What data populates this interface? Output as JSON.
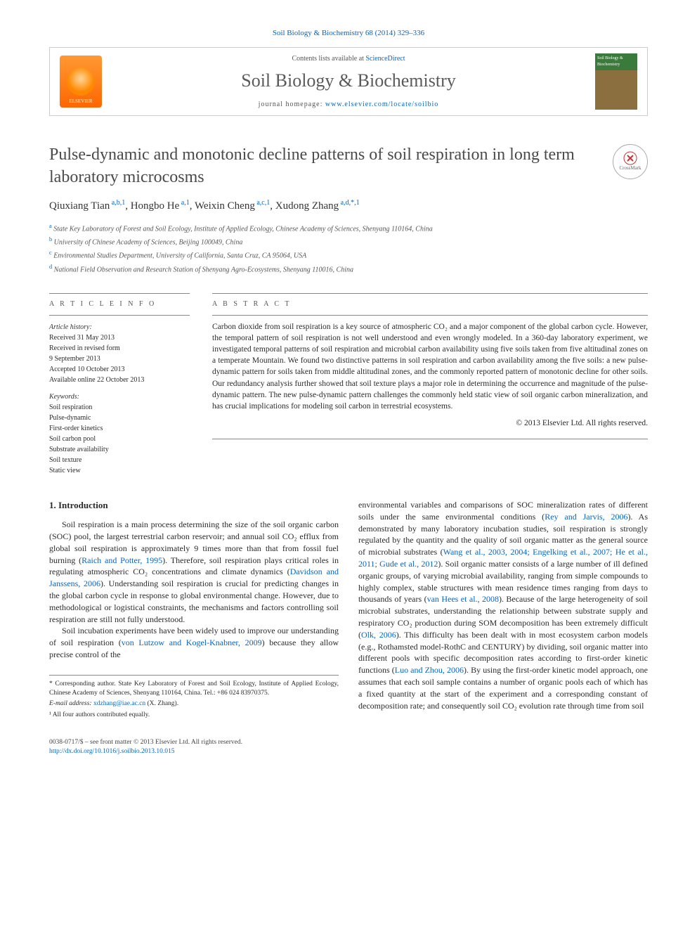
{
  "citation": "Soil Biology & Biochemistry 68 (2014) 329–336",
  "header": {
    "contents_prefix": "Contents lists available at ",
    "contents_link": "ScienceDirect",
    "journal": "Soil Biology & Biochemistry",
    "homepage_label": "journal homepage: ",
    "homepage_url": "www.elsevier.com/locate/soilbio",
    "publisher": "ELSEVIER",
    "cover_text": "Soil Biology & Biochemistry"
  },
  "title": "Pulse-dynamic and monotonic decline patterns of soil respiration in long term laboratory microcosms",
  "crossmark": "CrossMark",
  "authors_html": "Qiuxiang Tian<sup> a,b,1</sup>, Hongbo He<sup> a,1</sup>, Weixin Cheng<sup> a,c,1</sup>, Xudong Zhang<sup> a,d,*,1</sup>",
  "affiliations": [
    {
      "sup": "a",
      "text": "State Key Laboratory of Forest and Soil Ecology, Institute of Applied Ecology, Chinese Academy of Sciences, Shenyang 110164, China"
    },
    {
      "sup": "b",
      "text": "University of Chinese Academy of Sciences, Beijing 100049, China"
    },
    {
      "sup": "c",
      "text": "Environmental Studies Department, University of California, Santa Cruz, CA 95064, USA"
    },
    {
      "sup": "d",
      "text": "National Field Observation and Research Station of Shenyang Agro-Ecosystems, Shenyang 110016, China"
    }
  ],
  "info": {
    "heading": "A R T I C L E   I N F O",
    "history_label": "Article history:",
    "history": [
      "Received 31 May 2013",
      "Received in revised form",
      "9 September 2013",
      "Accepted 10 October 2013",
      "Available online 22 October 2013"
    ],
    "keywords_label": "Keywords:",
    "keywords": [
      "Soil respiration",
      "Pulse-dynamic",
      "First-order kinetics",
      "Soil carbon pool",
      "Substrate availability",
      "Soil texture",
      "Static view"
    ]
  },
  "abstract": {
    "heading": "A B S T R A C T",
    "text": "Carbon dioxide from soil respiration is a key source of atmospheric CO₂ and a major component of the global carbon cycle. However, the temporal pattern of soil respiration is not well understood and even wrongly modeled. In a 360-day laboratory experiment, we investigated temporal patterns of soil respiration and microbial carbon availability using five soils taken from five altitudinal zones on a temperate Mountain. We found two distinctive patterns in soil respiration and carbon availability among the five soils: a new pulse-dynamic pattern for soils taken from middle altitudinal zones, and the commonly reported pattern of monotonic decline for other soils. Our redundancy analysis further showed that soil texture plays a major role in determining the occurrence and magnitude of the pulse-dynamic pattern. The new pulse-dynamic pattern challenges the commonly held static view of soil organic carbon mineralization, and has crucial implications for modeling soil carbon in terrestrial ecosystems.",
    "copyright": "© 2013 Elsevier Ltd. All rights reserved."
  },
  "body": {
    "section_number": "1.",
    "section_title": "Introduction",
    "col1_p1_a": "Soil respiration is a main process determining the size of the soil organic carbon (SOC) pool, the largest terrestrial carbon reservoir; and annual soil CO₂ efflux from global soil respiration is approximately 9 times more than that from fossil fuel burning (",
    "col1_p1_ref1": "Raich and Potter, 1995",
    "col1_p1_b": "). Therefore, soil respiration plays critical roles in regulating atmospheric CO₂ concentrations and climate dynamics (",
    "col1_p1_ref2": "Davidson and Janssens, 2006",
    "col1_p1_c": "). Understanding soil respiration is crucial for predicting changes in the global carbon cycle in response to global environmental change. However, due to methodological or logistical constraints, the mechanisms and factors controlling soil respiration are still not fully understood.",
    "col1_p2_a": "Soil incubation experiments have been widely used to improve our understanding of soil respiration (",
    "col1_p2_ref1": "von Lutzow and Kogel-Knabner, 2009",
    "col1_p2_b": ") because they allow precise control of the",
    "col2_p1_a": "environmental variables and comparisons of SOC mineralization rates of different soils under the same environmental conditions (",
    "col2_p1_ref1": "Rey and Jarvis, 2006",
    "col2_p1_b": "). As demonstrated by many laboratory incubation studies, soil respiration is strongly regulated by the quantity and the quality of soil organic matter as the general source of microbial substrates (",
    "col2_p1_ref2": "Wang et al., 2003, 2004; Engelking et al., 2007; He et al., 2011; Gude et al., 2012",
    "col2_p1_c": "). Soil organic matter consists of a large number of ill defined organic groups, of varying microbial availability, ranging from simple compounds to highly complex, stable structures with mean residence times ranging from days to thousands of years (",
    "col2_p1_ref3": "van Hees et al., 2008",
    "col2_p1_d": "). Because of the large heterogeneity of soil microbial substrates, understanding the relationship between substrate supply and respiratory CO₂ production during SOM decomposition has been extremely difficult (",
    "col2_p1_ref4": "Olk, 2006",
    "col2_p1_e": "). This difficulty has been dealt with in most ecosystem carbon models (e.g., Rothamsted model-RothC and CENTURY) by dividing, soil organic matter into different pools with specific decomposition rates according to first-order kinetic functions (",
    "col2_p1_ref5": "Luo and Zhou, 2006",
    "col2_p1_f": "). By using the first-order kinetic model approach, one assumes that each soil sample contains a number of organic pools each of which has a fixed quantity at the start of the experiment and a corresponding constant of decomposition rate; and consequently soil CO₂ evolution rate through time from soil"
  },
  "footnotes": {
    "corr": "* Corresponding author. State Key Laboratory of Forest and Soil Ecology, Institute of Applied Ecology, Chinese Academy of Sciences, Shenyang 110164, China. Tel.: +86 024 83970375.",
    "email_label": "E-mail address: ",
    "email": "xdzhang@iae.ac.cn",
    "email_suffix": " (X. Zhang).",
    "equal": "¹ All four authors contributed equally."
  },
  "footer": {
    "issn": "0038-0717/$ – see front matter © 2013 Elsevier Ltd. All rights reserved.",
    "doi": "http://dx.doi.org/10.1016/j.soilbio.2013.10.015"
  },
  "colors": {
    "link": "#0066cc",
    "text": "#2a2a2a",
    "rule": "#888888"
  }
}
